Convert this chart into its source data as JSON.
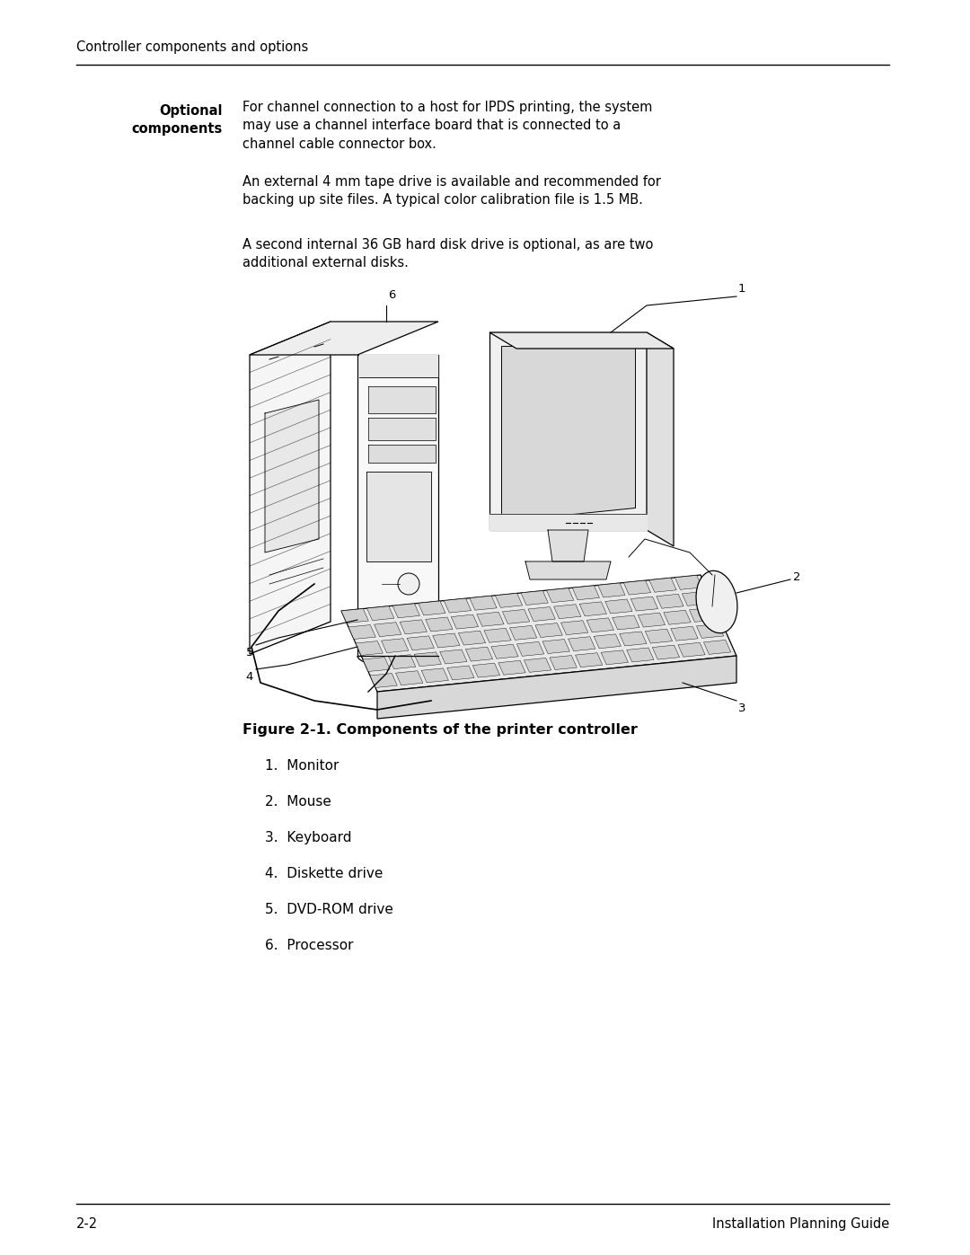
{
  "bg_color": "#ffffff",
  "page_width": 10.8,
  "page_height": 13.97,
  "header_text": "Controller components and options",
  "header_fontsize": 10.5,
  "left_col_label1": "Optional",
  "left_col_label2": "components",
  "para1_text": "For channel connection to a host for IPDS printing, the system\nmay use a channel interface board that is connected to a\nchannel cable connector box.",
  "para2_text": "An external 4 mm tape drive is available and recommended for\nbacking up site files. A typical color calibration file is 1.5 MB.",
  "para3_text": "A second internal 36 GB hard disk drive is optional, as are two\nadditional external disks.",
  "para_fontsize": 10.5,
  "figure_caption": "Figure 2-1. Components of the printer controller",
  "figure_caption_fontsize": 11.5,
  "list_items": [
    "1.  Monitor",
    "2.  Mouse",
    "3.  Keyboard",
    "4.  Diskette drive",
    "5.  DVD-ROM drive",
    "6.  Processor"
  ],
  "list_fontsize": 11,
  "footer_left": "2-2",
  "footer_right": "Installation Planning Guide",
  "footer_fontsize": 10.5
}
